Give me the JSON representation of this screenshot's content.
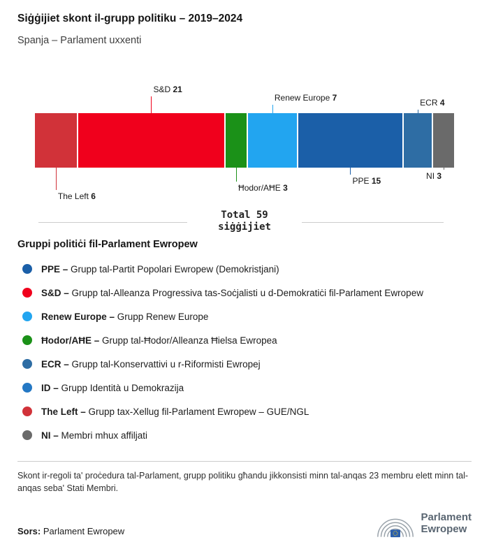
{
  "chart_data": {
    "type": "bar",
    "title": "Siġġijiet skont il-grupp politiku – 2019–2024",
    "subtitle": "Spanja – Parlament uxxenti",
    "orientation": "horizontal-stacked",
    "total": 59,
    "total_line1": "Total 59",
    "total_line2": "siġġijiet",
    "xlim": [
      0,
      59
    ],
    "segments": [
      {
        "name": "The Left",
        "seats": 6,
        "color": "#d13239",
        "label_side": "below",
        "line_len": 32,
        "label_align": "left"
      },
      {
        "name": "S&D",
        "seats": 21,
        "color": "#f0001c",
        "label_side": "above",
        "line_len": 24,
        "label_align": "left"
      },
      {
        "name": "Ħodor/AĦE",
        "seats": 3,
        "color": "#1b9118",
        "label_side": "below",
        "line_len": 20,
        "label_align": "left"
      },
      {
        "name": "Renew Europe",
        "seats": 7,
        "color": "#22a5f0",
        "label_side": "above",
        "line_len": 12,
        "label_align": "left"
      },
      {
        "name": "PPE",
        "seats": 15,
        "color": "#1b5fa8",
        "label_side": "below",
        "line_len": 10,
        "label_align": "left"
      },
      {
        "name": "ECR",
        "seats": 4,
        "color": "#2e6da4",
        "label_side": "above",
        "line_len": 5,
        "label_align": "left"
      },
      {
        "name": "NI",
        "seats": 3,
        "color": "#6a6a6a",
        "label_side": "below",
        "line_len": 3,
        "label_align": "right"
      }
    ]
  },
  "legend": {
    "heading": "Gruppi politiċi fil-Parlament Ewropew",
    "items": [
      {
        "abbr": "PPE –",
        "desc": "Grupp tal-Partit Popolari Ewropew (Demokristjani)",
        "color": "#1b5fa8"
      },
      {
        "abbr": "S&D –",
        "desc": "Grupp tal-Alleanza Progressiva tas-Soċjalisti u d-Demokratiċi fil-Parlament Ewropew",
        "color": "#f0001c"
      },
      {
        "abbr": "Renew Europe –",
        "desc": "Grupp Renew Europe",
        "color": "#22a5f0"
      },
      {
        "abbr": "Ħodor/AĦE –",
        "desc": "Grupp tal-Ħodor/Alleanza Ħielsa Ewropea",
        "color": "#1b9118"
      },
      {
        "abbr": "ECR –",
        "desc": "Grupp tal-Konservattivi u r-Riformisti Ewropej",
        "color": "#2e6da4"
      },
      {
        "abbr": "ID –",
        "desc": "Grupp Identità u Demokrazija",
        "color": "#2478c4"
      },
      {
        "abbr": "The Left –",
        "desc": "Grupp tax-Xellug fil-Parlament Ewropew – GUE/NGL",
        "color": "#d13239"
      },
      {
        "abbr": "NI –",
        "desc": "Membri mhux affiljati",
        "color": "#6a6a6a"
      }
    ]
  },
  "footer": {
    "note": "Skont ir-regoli ta' proċedura tal-Parlament, grupp politiku għandu jikkonsisti minn tal-anqas 23 membru elett minn tal-anqas seba' Stati Membri.",
    "source_label": "Sors:",
    "source_text": " Parlament Ewropew",
    "logo": {
      "line1": "Parlament",
      "line2": "Ewropew"
    }
  }
}
